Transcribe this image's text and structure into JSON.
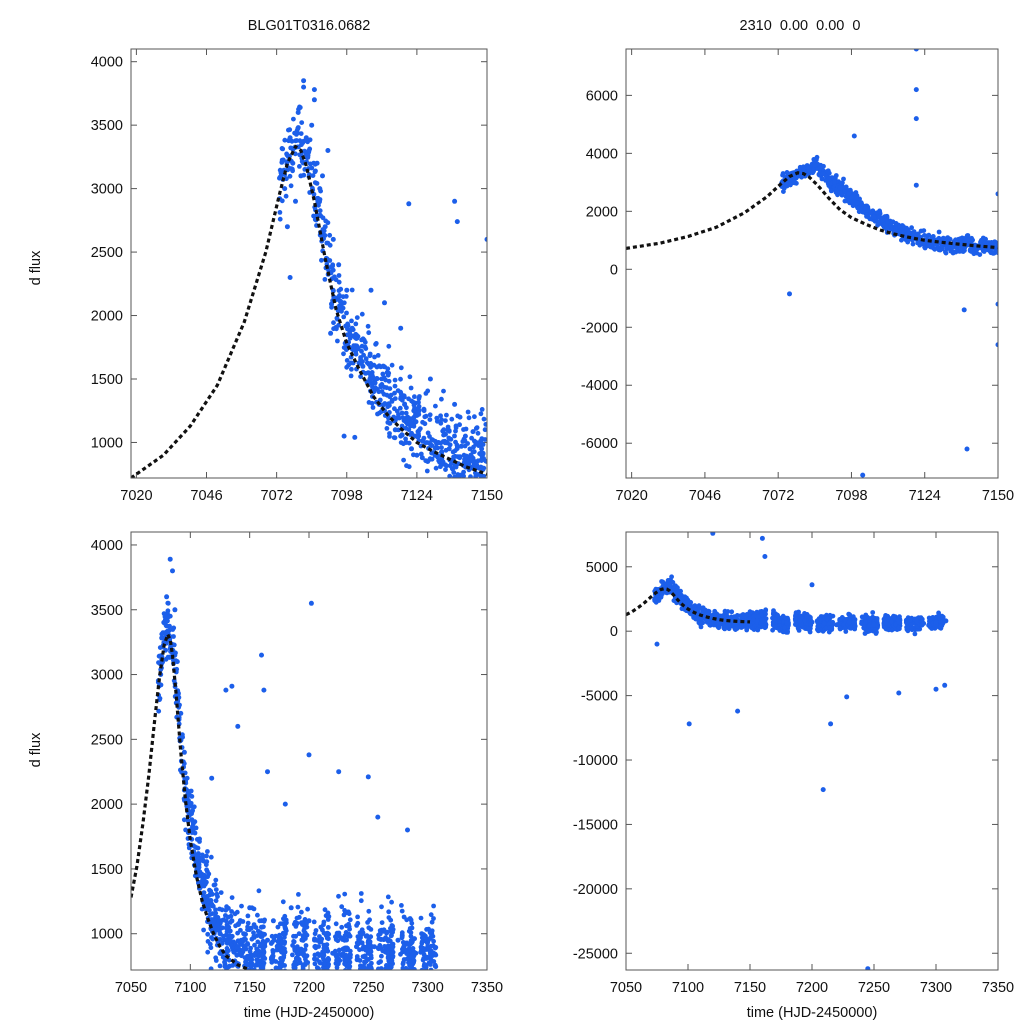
{
  "figure": {
    "title_left": "BLG01T0316.0682",
    "title_right": "2310  0.00  0.00  0",
    "xlabel": "time (HJD-2450000)",
    "ylabel": "d flux"
  },
  "colors": {
    "points": "#1c5fea",
    "model": "#111111",
    "axes": "#555555"
  },
  "chart_data": [
    {
      "panel": "top-left",
      "type": "scatter",
      "title": "BLG01T0316.0682",
      "ylabel": "d flux",
      "xlabel": "",
      "xlim": [
        7018,
        7150
      ],
      "ylim": [
        720,
        4100
      ],
      "xticks": [
        7020,
        7046,
        7072,
        7098,
        7124,
        7150
      ],
      "yticks": [
        1000,
        1500,
        2000,
        2500,
        3000,
        3500,
        4000
      ],
      "series": [
        {
          "name": "data",
          "x": [
            7075,
            7076,
            7077,
            7078,
            7079,
            7080,
            7081,
            7082,
            7083,
            7084,
            7085,
            7086,
            7087,
            7088,
            7089,
            7090,
            7091,
            7093,
            7095,
            7098,
            7100,
            7102,
            7104,
            7106,
            7108,
            7110,
            7112,
            7114,
            7116,
            7118,
            7120,
            7122,
            7124,
            7126,
            7128,
            7130,
            7132,
            7134,
            7136,
            7138,
            7140,
            7142,
            7144,
            7146,
            7148,
            7150,
            7077,
            7082,
            7086,
            7092,
            7097,
            7101,
            7107,
            7112,
            7118,
            7121,
            7138,
            7139,
            7150,
            7129
          ],
          "y": [
            3000,
            2700,
            3400,
            3200,
            2900,
            3600,
            3100,
            3800,
            3400,
            3300,
            3500,
            3700,
            3200,
            3000,
            3100,
            2700,
            3300,
            2600,
            2400,
            2200,
            1900,
            1750,
            1600,
            1550,
            1400,
            1300,
            1250,
            1150,
            1100,
            1050,
            1000,
            950,
            900,
            880,
            850,
            920,
            1000,
            1100,
            950,
            1300,
            1200,
            1050,
            900,
            1000,
            950,
            850,
            2300,
            3850,
            3780,
            1860,
            1050,
            1040,
            2200,
            2100,
            1900,
            2880,
            2900,
            2740,
            2600,
            1500
          ]
        },
        {
          "name": "model",
          "type": "line",
          "x": [
            7018,
            7030,
            7040,
            7050,
            7060,
            7068,
            7073,
            7076,
            7079,
            7081,
            7083,
            7086,
            7090,
            7094,
            7098,
            7103,
            7108,
            7113,
            7118,
            7124,
            7130,
            7136,
            7142,
            7146,
            7150
          ],
          "y": [
            720,
            900,
            1130,
            1450,
            1950,
            2500,
            2950,
            3200,
            3330,
            3300,
            3180,
            2900,
            2450,
            2050,
            1780,
            1560,
            1360,
            1220,
            1110,
            1000,
            930,
            870,
            810,
            780,
            750
          ]
        }
      ]
    },
    {
      "panel": "top-right",
      "type": "scatter",
      "title": "2310  0.00  0.00  0",
      "ylabel": "",
      "xlabel": "",
      "xlim": [
        7018,
        7150
      ],
      "ylim": [
        -7200,
        7600
      ],
      "xticks": [
        7020,
        7046,
        7072,
        7098,
        7124,
        7150
      ],
      "yticks": [
        -6000,
        -4000,
        -2000,
        0,
        2000,
        4000,
        6000
      ],
      "series": [
        {
          "name": "data",
          "x": [
            7075,
            7078,
            7081,
            7083,
            7085,
            7088,
            7090,
            7092,
            7094,
            7097,
            7100,
            7103,
            7106,
            7109,
            7112,
            7115,
            7118,
            7121,
            7124,
            7127,
            7130,
            7133,
            7136,
            7139,
            7142,
            7145,
            7148,
            7150,
            7076,
            7099,
            7102,
            7121,
            7121,
            7121,
            7138,
            7150,
            7150,
            7139,
            7150,
            7121
          ],
          "y": [
            3000,
            3200,
            3500,
            3400,
            3600,
            3300,
            3100,
            3000,
            2800,
            2600,
            2300,
            2100,
            1800,
            1700,
            1500,
            1300,
            1200,
            1100,
            1000,
            950,
            900,
            850,
            800,
            1000,
            700,
            850,
            750,
            700,
            -850,
            4600,
            -7100,
            6200,
            5200,
            2900,
            -1400,
            -1200,
            -2600,
            -6200,
            2600,
            7600
          ]
        },
        {
          "name": "model",
          "type": "line",
          "x": [
            7018,
            7030,
            7040,
            7050,
            7060,
            7068,
            7073,
            7076,
            7079,
            7081,
            7083,
            7086,
            7090,
            7094,
            7098,
            7103,
            7108,
            7113,
            7118,
            7124,
            7130,
            7136,
            7142,
            7146,
            7150
          ],
          "y": [
            720,
            900,
            1130,
            1450,
            1950,
            2500,
            2950,
            3200,
            3330,
            3300,
            3180,
            2900,
            2450,
            2050,
            1780,
            1560,
            1360,
            1220,
            1110,
            1000,
            930,
            870,
            810,
            780,
            750
          ]
        }
      ]
    },
    {
      "panel": "bottom-left",
      "type": "scatter",
      "title": "",
      "ylabel": "d flux",
      "xlabel": "time (HJD-2450000)",
      "xlim": [
        7050,
        7350
      ],
      "ylim": [
        720,
        4100
      ],
      "xticks": [
        7050,
        7100,
        7150,
        7200,
        7250,
        7300,
        7350
      ],
      "yticks": [
        1000,
        1500,
        2000,
        2500,
        3000,
        3500,
        4000
      ],
      "series": [
        {
          "name": "data",
          "x": [
            7075,
            7078,
            7080,
            7083,
            7085,
            7087,
            7089,
            7092,
            7095,
            7098,
            7102,
            7106,
            7110,
            7115,
            7120,
            7125,
            7130,
            7135,
            7140,
            7145,
            7150,
            7155,
            7160,
            7165,
            7170,
            7175,
            7180,
            7185,
            7190,
            7195,
            7200,
            7205,
            7210,
            7215,
            7220,
            7230,
            7240,
            7245,
            7250,
            7255,
            7260,
            7270,
            7275,
            7280,
            7290,
            7295,
            7300,
            7305,
            7083,
            7130,
            7135,
            7160,
            7162,
            7202,
            7225,
            7250,
            7165,
            7140,
            7118,
            7200,
            7180,
            7258,
            7283
          ],
          "y": [
            3000,
            3400,
            3600,
            3200,
            3800,
            3500,
            3100,
            2700,
            2400,
            2100,
            1800,
            1600,
            1400,
            1200,
            1100,
            1000,
            950,
            1100,
            900,
            1000,
            1200,
            850,
            1050,
            950,
            1100,
            900,
            1000,
            1200,
            850,
            950,
            1100,
            900,
            1050,
            1000,
            850,
            950,
            900,
            1000,
            850,
            900,
            1000,
            850,
            950,
            900,
            850,
            1000,
            900,
            850,
            3890,
            2880,
            2910,
            3150,
            2880,
            3550,
            2250,
            2210,
            2250,
            2600,
            2200,
            2380,
            2000,
            1900,
            1800
          ]
        },
        {
          "name": "model",
          "type": "line",
          "x": [
            7050,
            7055,
            7060,
            7065,
            7070,
            7074,
            7078,
            7081,
            7083,
            7085,
            7088,
            7092,
            7096,
            7100,
            7105,
            7110,
            7115,
            7120,
            7125,
            7130,
            7140,
            7150
          ],
          "y": [
            1280,
            1520,
            1850,
            2220,
            2650,
            2980,
            3230,
            3310,
            3270,
            3150,
            2850,
            2400,
            2020,
            1720,
            1450,
            1250,
            1110,
            990,
            900,
            830,
            760,
            720
          ]
        }
      ]
    },
    {
      "panel": "bottom-right",
      "type": "scatter",
      "title": "",
      "ylabel": "",
      "xlabel": "time (HJD-2450000)",
      "xlim": [
        7050,
        7350
      ],
      "ylim": [
        -26300,
        7700
      ],
      "xticks": [
        7050,
        7100,
        7150,
        7200,
        7250,
        7300,
        7350
      ],
      "yticks": [
        -25000,
        -20000,
        -15000,
        -10000,
        -5000,
        0,
        5000
      ],
      "series": [
        {
          "name": "data",
          "x": [
            7075,
            7080,
            7085,
            7090,
            7095,
            7100,
            7105,
            7110,
            7120,
            7130,
            7140,
            7150,
            7160,
            7170,
            7180,
            7190,
            7200,
            7210,
            7220,
            7230,
            7240,
            7250,
            7260,
            7270,
            7280,
            7290,
            7300,
            7308,
            7120,
            7160,
            7162,
            7101,
            7140,
            7075,
            7209,
            7215,
            7245,
            7228,
            7200,
            7270,
            7300,
            7307
          ],
          "y": [
            2800,
            3200,
            3500,
            3000,
            2500,
            1800,
            1500,
            1200,
            900,
            800,
            700,
            800,
            900,
            700,
            600,
            800,
            700,
            600,
            500,
            700,
            600,
            500,
            600,
            700,
            500,
            600,
            700,
            800,
            7600,
            7200,
            5800,
            -7200,
            -6200,
            -1000,
            -12300,
            -7200,
            -26200,
            -5100,
            3600,
            -4800,
            -4500,
            -4200
          ]
        },
        {
          "name": "model",
          "type": "line",
          "x": [
            7050,
            7055,
            7060,
            7065,
            7070,
            7074,
            7078,
            7081,
            7083,
            7085,
            7088,
            7092,
            7096,
            7100,
            7105,
            7110,
            7115,
            7120,
            7125,
            7130,
            7140,
            7150
          ],
          "y": [
            1280,
            1520,
            1850,
            2220,
            2650,
            2980,
            3230,
            3310,
            3270,
            3150,
            2850,
            2400,
            2020,
            1720,
            1450,
            1250,
            1110,
            990,
            900,
            830,
            760,
            720
          ]
        }
      ]
    }
  ]
}
